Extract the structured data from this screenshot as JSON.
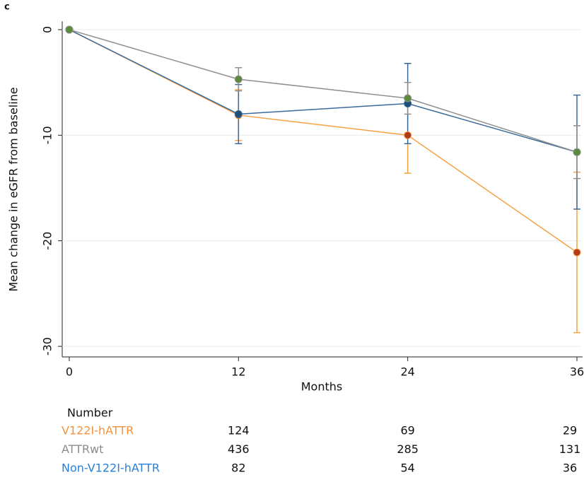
{
  "chart_data": {
    "type": "line",
    "panel_label": "c",
    "x_label": "Months",
    "y_label": "Mean change in eGFR from baseline",
    "x": [
      0,
      12,
      24,
      36
    ],
    "xlim": [
      -0.5,
      36.3
    ],
    "xticks": [
      0,
      12,
      24,
      36
    ],
    "ylim": [
      -31,
      0.8
    ],
    "yticks": [
      0,
      -10,
      -20,
      -30
    ],
    "grid": true,
    "series": [
      {
        "name": "V122I-hATTR",
        "color": "#f5a045",
        "marker_color": "#b03a1a",
        "values": [
          0,
          -8.1,
          -10,
          -21.1
        ],
        "errors": [
          0,
          2.4,
          3.6,
          7.6
        ]
      },
      {
        "name": "Non-V122I-hATTR",
        "color": "#3a6a9a",
        "marker_color": "#1f4e79",
        "values": [
          0,
          -8,
          -7,
          -11.6
        ],
        "errors": [
          0,
          2.8,
          3.8,
          5.4
        ]
      },
      {
        "name": "ATTRwt",
        "color": "#8f8f8f",
        "marker_color": "#5a8a3a",
        "values": [
          0,
          -4.7,
          -6.5,
          -11.6
        ],
        "errors": [
          0,
          1.1,
          1.5,
          2.5
        ]
      }
    ],
    "number_table": {
      "title": "Number",
      "rows": [
        {
          "name": "V122I-hATTR",
          "color": "#f4923a",
          "values": [
            124,
            69,
            29
          ]
        },
        {
          "name": "ATTRwt",
          "color": "#8c8c8c",
          "values": [
            436,
            285,
            131
          ]
        },
        {
          "name": "Non-V122I-hATTR",
          "color": "#2a7fd4",
          "values": [
            82,
            54,
            36
          ]
        }
      ]
    }
  }
}
